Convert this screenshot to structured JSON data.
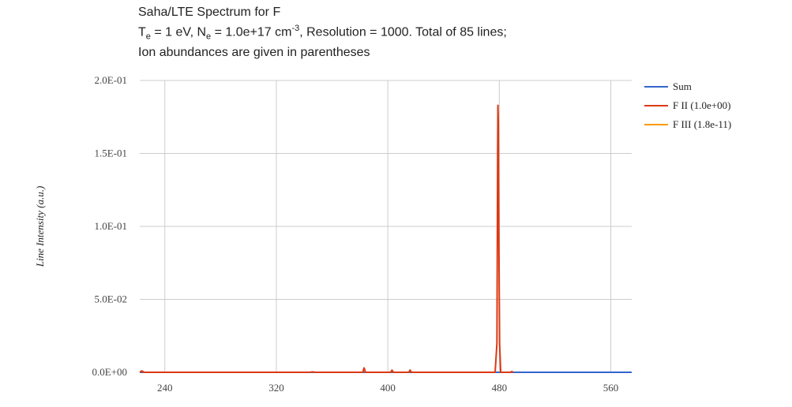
{
  "title": {
    "line1": "Saha/LTE Spectrum for F",
    "line2_parts": {
      "te_label": "T",
      "te_sub": "e",
      "te_value": " = 1 eV, N",
      "ne_sub": "e",
      "ne_value": " = 1.0e+17 cm",
      "ne_sup": "-3",
      "rest": ", Resolution = 1000. Total of 85 lines;"
    },
    "line3": "Ion abundances are given in parentheses"
  },
  "chart_data": {
    "type": "line",
    "xlim": [
      222,
      575
    ],
    "ylim": [
      0,
      0.2
    ],
    "x_ticks": [
      240,
      320,
      400,
      480,
      560
    ],
    "x_tick_labels": [
      "240",
      "320",
      "400",
      "480",
      "560"
    ],
    "y_ticks": [
      0,
      0.05,
      0.1,
      0.15,
      0.2
    ],
    "y_tick_labels": [
      "0.0E+00",
      "5.0E-02",
      "1.0E-01",
      "1.5E-01",
      "2.0E-01"
    ],
    "xlabel": "",
    "ylabel": "Line Intensity (a.u.)",
    "grid": true,
    "legend_position": "right",
    "colors": {
      "sum": "#3366cc",
      "f2": "#dc3912",
      "f3": "#ff9900"
    },
    "series": [
      {
        "name": "Sum",
        "color": "#3366cc",
        "points": [
          [
            222,
            0.0
          ],
          [
            575,
            0.0
          ]
        ]
      },
      {
        "name": "F II (1.0e+00)",
        "color": "#dc3912",
        "points": [
          [
            222,
            0
          ],
          [
            223.5,
            0.001
          ],
          [
            225,
            0
          ],
          [
            344,
            0
          ],
          [
            346,
            0.0003
          ],
          [
            348,
            0
          ],
          [
            382,
            0
          ],
          [
            383,
            0.003
          ],
          [
            384,
            0
          ],
          [
            402,
            0
          ],
          [
            403,
            0.0015
          ],
          [
            404,
            0
          ],
          [
            415,
            0
          ],
          [
            416,
            0.0015
          ],
          [
            417,
            0
          ],
          [
            477,
            0
          ],
          [
            478.3,
            0.02
          ],
          [
            478.8,
            0.15
          ],
          [
            479,
            0.183
          ],
          [
            479.3,
            0.17
          ],
          [
            479.7,
            0.09
          ],
          [
            480.2,
            0.02
          ],
          [
            481,
            0
          ],
          [
            488,
            0
          ],
          [
            489,
            0.0005
          ],
          [
            490,
            0
          ]
        ]
      },
      {
        "name": "F III (1.8e-11)",
        "color": "#ff9900",
        "points": [
          [
            290,
            0
          ],
          [
            321,
            0
          ]
        ]
      }
    ]
  }
}
